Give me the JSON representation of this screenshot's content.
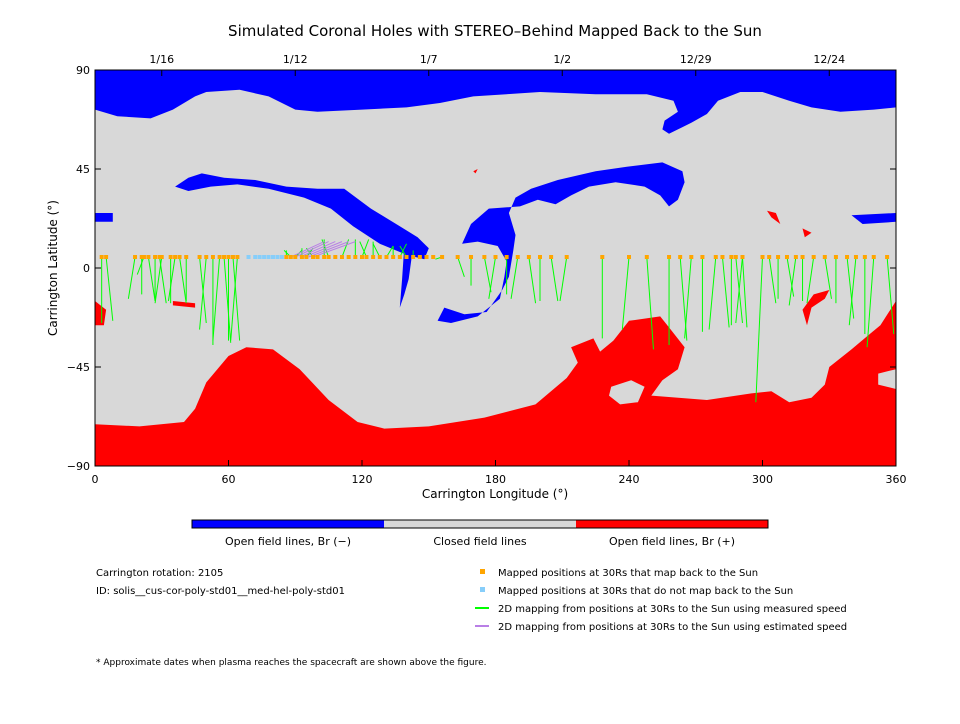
{
  "title": "Simulated Coronal Holes with STEREO–Behind Mapped Back to the Sun",
  "colors": {
    "open_negative": "#0000ff",
    "closed": "#d8d8d8",
    "open_positive": "#ff0000",
    "mapped_back": "#ffa500",
    "not_mapped_back": "#87cefa",
    "measured_speed": "#00ff00",
    "estimated_speed": "#b97fe6"
  },
  "chart_data": {
    "type": "map",
    "xlabel": "Carrington Longitude (°)",
    "ylabel": "Carrington Latitude (°)",
    "xlim": [
      0,
      360
    ],
    "ylim": [
      -90,
      90
    ],
    "x_ticks": [
      0,
      60,
      120,
      180,
      240,
      300,
      360
    ],
    "y_ticks": [
      90,
      45,
      0,
      -45,
      -90
    ],
    "top_axis": [
      {
        "lon": 30,
        "date": "1/16"
      },
      {
        "lon": 90,
        "date": "1/12"
      },
      {
        "lon": 150,
        "date": "1/7"
      },
      {
        "lon": 210,
        "date": "1/2"
      },
      {
        "lon": 270,
        "date": "12/29"
      },
      {
        "lon": 330,
        "date": "12/24"
      }
    ],
    "coronal_holes": {
      "negative": [
        [
          [
            0,
            90
          ],
          [
            360,
            90
          ],
          [
            360,
            73
          ],
          [
            350,
            72
          ],
          [
            335,
            71
          ],
          [
            322,
            73
          ],
          [
            312,
            76
          ],
          [
            300,
            80
          ],
          [
            290,
            80
          ],
          [
            280,
            76
          ],
          [
            275,
            70
          ],
          [
            268,
            66
          ],
          [
            262,
            63
          ],
          [
            258,
            61
          ],
          [
            255,
            63
          ],
          [
            256,
            67
          ],
          [
            262,
            71
          ],
          [
            260,
            76
          ],
          [
            248,
            79
          ],
          [
            225,
            79
          ],
          [
            200,
            80
          ],
          [
            185,
            79
          ],
          [
            170,
            78
          ],
          [
            155,
            75
          ],
          [
            140,
            73
          ],
          [
            120,
            72
          ],
          [
            100,
            71
          ],
          [
            90,
            72
          ],
          [
            78,
            78
          ],
          [
            65,
            81
          ],
          [
            50,
            80
          ],
          [
            45,
            78
          ],
          [
            35,
            72
          ],
          [
            25,
            68
          ],
          [
            10,
            69
          ],
          [
            0,
            72
          ]
        ],
        [
          [
            165,
            11
          ],
          [
            169,
            20
          ],
          [
            177,
            27
          ],
          [
            191,
            28
          ],
          [
            199,
            31
          ],
          [
            207,
            29
          ],
          [
            214,
            33
          ],
          [
            222,
            37
          ],
          [
            234,
            39
          ],
          [
            247,
            37
          ],
          [
            254,
            33
          ],
          [
            258,
            28
          ],
          [
            262,
            31
          ],
          [
            265,
            39
          ],
          [
            264,
            44
          ],
          [
            255,
            48
          ],
          [
            239,
            46
          ],
          [
            225,
            44
          ],
          [
            208,
            40
          ],
          [
            196,
            36
          ],
          [
            189,
            32
          ],
          [
            186,
            25
          ],
          [
            189,
            15
          ],
          [
            188,
            8
          ],
          [
            186,
            -4
          ],
          [
            183,
            -10
          ],
          [
            176,
            -20
          ],
          [
            166,
            -21
          ],
          [
            157,
            -18
          ],
          [
            154,
            -24
          ],
          [
            160,
            -25
          ],
          [
            172,
            -22
          ],
          [
            182,
            -14
          ],
          [
            184,
            -4
          ],
          [
            185,
            3
          ],
          [
            181,
            10
          ],
          [
            172,
            12
          ]
        ],
        [
          [
            36,
            37
          ],
          [
            42,
            41
          ],
          [
            48,
            43
          ],
          [
            58,
            41
          ],
          [
            72,
            40
          ],
          [
            86,
            37
          ],
          [
            100,
            36
          ],
          [
            112,
            36
          ],
          [
            124,
            27
          ],
          [
            137,
            19
          ],
          [
            145,
            14
          ],
          [
            150,
            9
          ],
          [
            148,
            4
          ],
          [
            140,
            6
          ],
          [
            128,
            11
          ],
          [
            116,
            19
          ],
          [
            106,
            27
          ],
          [
            94,
            32
          ],
          [
            78,
            36
          ],
          [
            64,
            38
          ],
          [
            52,
            37
          ],
          [
            42,
            35
          ]
        ],
        [
          [
            0,
            25
          ],
          [
            8,
            25
          ],
          [
            8,
            21
          ],
          [
            0,
            21
          ]
        ],
        [
          [
            340,
            24
          ],
          [
            360,
            25
          ],
          [
            360,
            21
          ],
          [
            345,
            20
          ]
        ],
        [
          [
            139,
            10
          ],
          [
            143,
            10
          ],
          [
            141,
            -5
          ],
          [
            139,
            -12
          ],
          [
            137,
            -18
          ],
          [
            138,
            -5
          ]
        ]
      ],
      "positive": [
        [
          [
            0,
            -71
          ],
          [
            20,
            -72
          ],
          [
            40,
            -70
          ],
          [
            45,
            -64
          ],
          [
            50,
            -52
          ],
          [
            60,
            -40
          ],
          [
            68,
            -36
          ],
          [
            80,
            -37
          ],
          [
            92,
            -46
          ],
          [
            105,
            -60
          ],
          [
            118,
            -70
          ],
          [
            130,
            -73
          ],
          [
            150,
            -72
          ],
          [
            175,
            -68
          ],
          [
            198,
            -62
          ],
          [
            212,
            -50
          ],
          [
            217,
            -43
          ],
          [
            214,
            -36
          ],
          [
            224,
            -32
          ],
          [
            227,
            -38
          ],
          [
            233,
            -33
          ],
          [
            240,
            -24
          ],
          [
            254,
            -22
          ],
          [
            258,
            -27
          ],
          [
            265,
            -36
          ],
          [
            262,
            -46
          ],
          [
            255,
            -51
          ],
          [
            250,
            -58
          ],
          [
            275,
            -60
          ],
          [
            295,
            -57
          ],
          [
            304,
            -56
          ],
          [
            312,
            -61
          ],
          [
            322,
            -59
          ],
          [
            328,
            -53
          ],
          [
            330,
            -45
          ],
          [
            340,
            -37
          ],
          [
            347,
            -31
          ],
          [
            353,
            -26
          ],
          [
            360,
            -15
          ],
          [
            360,
            -90
          ],
          [
            0,
            -90
          ]
        ],
        [
          [
            0,
            -15
          ],
          [
            5,
            -19
          ],
          [
            4,
            -26
          ],
          [
            0,
            -26
          ]
        ],
        [
          [
            318,
            -19
          ],
          [
            323,
            -12
          ],
          [
            330,
            -10
          ],
          [
            328,
            -14
          ],
          [
            322,
            -18
          ],
          [
            320,
            -26
          ]
        ],
        [
          [
            302,
            26
          ],
          [
            306,
            25
          ],
          [
            308,
            20
          ],
          [
            304,
            23
          ]
        ],
        [
          [
            318,
            18
          ],
          [
            322,
            16
          ],
          [
            319,
            14
          ]
        ],
        [
          [
            35,
            -15
          ],
          [
            45,
            -16
          ],
          [
            45,
            -18
          ],
          [
            35,
            -17
          ]
        ],
        [
          [
            170,
            44
          ],
          [
            172,
            45
          ],
          [
            171,
            43
          ]
        ]
      ]
    },
    "closed_islands": [
      [
        [
          232,
          -54
        ],
        [
          241,
          -51
        ],
        [
          247,
          -54
        ],
        [
          244,
          -61
        ],
        [
          236,
          -62
        ],
        [
          231,
          -58
        ]
      ],
      [
        [
          224,
          -30
        ],
        [
          228,
          -29
        ],
        [
          226,
          -34
        ]
      ],
      [
        [
          352,
          -48
        ],
        [
          360,
          -46
        ],
        [
          360,
          -55
        ],
        [
          352,
          -53
        ]
      ]
    ],
    "mapped_positions_lon": [
      3,
      5,
      18,
      21,
      22,
      24,
      27,
      29,
      30,
      34,
      36,
      38,
      41,
      47,
      50,
      53,
      56,
      58,
      60,
      62,
      64,
      86,
      88,
      90,
      93,
      95,
      98,
      100,
      103,
      105,
      108,
      111,
      114,
      117,
      120,
      122,
      125,
      128,
      131,
      134,
      137,
      140,
      143,
      146,
      149,
      152,
      156,
      163,
      169,
      175,
      180,
      185,
      190,
      195,
      200,
      205,
      212,
      228,
      240,
      248,
      258,
      263,
      268,
      273,
      279,
      282,
      286,
      288,
      291,
      300,
      303,
      307,
      311,
      315,
      318,
      323,
      328,
      333,
      338,
      342,
      346,
      350,
      356
    ],
    "unmapped_positions_lon": [
      69,
      72,
      74,
      76,
      78,
      80,
      82,
      84
    ],
    "measured_links": [
      [
        3,
        -25
      ],
      [
        5,
        -24
      ],
      [
        18,
        -14
      ],
      [
        21,
        -12
      ],
      [
        22,
        -3
      ],
      [
        24,
        -15
      ],
      [
        27,
        -14
      ],
      [
        29,
        -16
      ],
      [
        30,
        -16
      ],
      [
        34,
        -16
      ],
      [
        36,
        -15
      ],
      [
        38,
        -16
      ],
      [
        41,
        -15
      ],
      [
        47,
        -25
      ],
      [
        50,
        -28
      ],
      [
        53,
        -35
      ],
      [
        56,
        -33
      ],
      [
        58,
        -34
      ],
      [
        60,
        -33
      ],
      [
        62,
        -33
      ],
      [
        64,
        -33
      ],
      [
        86,
        8
      ],
      [
        88,
        8
      ],
      [
        90,
        8
      ],
      [
        93,
        9
      ],
      [
        95,
        9
      ],
      [
        98,
        9
      ],
      [
        103,
        13
      ],
      [
        105,
        13
      ],
      [
        111,
        13
      ],
      [
        117,
        13
      ],
      [
        120,
        13
      ],
      [
        122,
        12
      ],
      [
        125,
        12
      ],
      [
        128,
        11
      ],
      [
        131,
        10
      ],
      [
        134,
        10
      ],
      [
        137,
        11
      ],
      [
        140,
        10
      ],
      [
        143,
        8
      ],
      [
        156,
        4
      ],
      [
        163,
        -4
      ],
      [
        169,
        -8
      ],
      [
        175,
        -11
      ],
      [
        180,
        -14
      ],
      [
        185,
        -12
      ],
      [
        190,
        -14
      ],
      [
        195,
        -16
      ],
      [
        200,
        -15
      ],
      [
        205,
        -15
      ],
      [
        212,
        -15
      ],
      [
        228,
        -32
      ],
      [
        240,
        -28
      ],
      [
        248,
        -37
      ],
      [
        258,
        -35
      ],
      [
        263,
        -33
      ],
      [
        268,
        -32
      ],
      [
        273,
        -29
      ],
      [
        279,
        -28
      ],
      [
        282,
        -27
      ],
      [
        286,
        -26
      ],
      [
        288,
        -25
      ],
      [
        291,
        -25
      ],
      [
        293,
        -27
      ],
      [
        300,
        -61
      ],
      [
        303,
        -16
      ],
      [
        307,
        -14
      ],
      [
        311,
        -13
      ],
      [
        315,
        -17
      ],
      [
        318,
        -15
      ],
      [
        323,
        -16
      ],
      [
        328,
        -14
      ],
      [
        333,
        -16
      ],
      [
        338,
        -23
      ],
      [
        342,
        -26
      ],
      [
        346,
        -30
      ],
      [
        350,
        -36
      ],
      [
        356,
        -30
      ]
    ],
    "estimated_links": [
      [
        103,
        12
      ],
      [
        105,
        12
      ],
      [
        108,
        12
      ],
      [
        111,
        12
      ],
      [
        114,
        12
      ],
      [
        117,
        12
      ]
    ],
    "colorbar": [
      {
        "key": "open_negative",
        "label": "Open field lines, Br (−)"
      },
      {
        "key": "closed",
        "label": "Closed field lines"
      },
      {
        "key": "open_positive",
        "label": "Open field lines, Br (+)"
      }
    ]
  },
  "info": {
    "rotation": "Carrington rotation: 2105",
    "model_id": "ID: solis__cus-cor-poly-std01__med-hel-poly-std01"
  },
  "legend": [
    {
      "marker": "square",
      "color_key": "mapped_back",
      "label": "Mapped positions at 30Rs that map back to the Sun"
    },
    {
      "marker": "square",
      "color_key": "not_mapped_back",
      "label": "Mapped positions at 30Rs that do not map back to the Sun"
    },
    {
      "marker": "line",
      "color_key": "measured_speed",
      "label": "2D mapping from positions at 30Rs to the Sun using measured speed"
    },
    {
      "marker": "line",
      "color_key": "estimated_speed",
      "label": "2D mapping from positions at 30Rs to the Sun using estimated speed"
    }
  ],
  "footnote": "* Approximate dates when plasma reaches the spacecraft are shown above the figure."
}
